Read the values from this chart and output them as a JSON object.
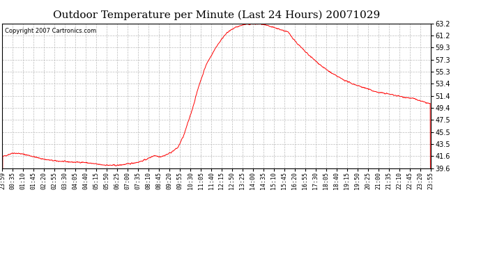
{
  "title": "Outdoor Temperature per Minute (Last 24 Hours) 20071029",
  "copyright": "Copyright 2007 Cartronics.com",
  "line_color": "#ff0000",
  "background_color": "#ffffff",
  "grid_color": "#bbbbbb",
  "yticks": [
    39.6,
    41.6,
    43.5,
    45.5,
    47.5,
    49.4,
    51.4,
    53.4,
    55.3,
    57.3,
    59.3,
    61.2,
    63.2
  ],
  "ylim": [
    39.6,
    63.2
  ],
  "xtick_labels": [
    "23:59",
    "00:35",
    "01:10",
    "01:45",
    "02:20",
    "02:55",
    "03:30",
    "04:05",
    "04:40",
    "05:15",
    "05:50",
    "06:25",
    "07:00",
    "07:35",
    "08:10",
    "08:45",
    "09:20",
    "09:55",
    "10:30",
    "11:05",
    "11:40",
    "12:15",
    "12:50",
    "13:25",
    "14:00",
    "14:35",
    "15:10",
    "15:45",
    "16:20",
    "16:55",
    "17:30",
    "18:05",
    "18:40",
    "19:15",
    "19:50",
    "20:25",
    "21:00",
    "21:35",
    "22:10",
    "22:45",
    "23:20",
    "23:55"
  ],
  "title_fontsize": 11,
  "copyright_fontsize": 6,
  "tick_fontsize": 6,
  "y_tick_fontsize": 7,
  "ctrl_x": [
    0,
    35,
    60,
    90,
    120,
    150,
    180,
    210,
    240,
    270,
    300,
    330,
    360,
    390,
    420,
    455,
    475,
    490,
    510,
    530,
    540,
    555,
    570,
    590,
    610,
    640,
    660,
    685,
    720,
    750,
    780,
    810,
    840,
    870,
    900,
    930,
    960,
    990,
    1020,
    1050,
    1080,
    1110,
    1140,
    1170,
    1200,
    1230,
    1260,
    1290,
    1320,
    1350,
    1380,
    1410,
    1439
  ],
  "ctrl_y": [
    41.5,
    42.1,
    42.0,
    41.7,
    41.3,
    41.0,
    40.8,
    40.7,
    40.6,
    40.6,
    40.4,
    40.2,
    40.1,
    40.1,
    40.3,
    40.6,
    40.9,
    41.2,
    41.7,
    41.5,
    41.6,
    41.9,
    42.3,
    43.0,
    45.0,
    49.5,
    53.0,
    56.5,
    59.5,
    61.5,
    62.5,
    63.0,
    63.1,
    63.1,
    62.7,
    62.3,
    61.8,
    60.0,
    58.5,
    57.2,
    56.0,
    55.0,
    54.2,
    53.5,
    53.0,
    52.5,
    52.0,
    51.8,
    51.5,
    51.2,
    51.0,
    50.5,
    50.1
  ]
}
